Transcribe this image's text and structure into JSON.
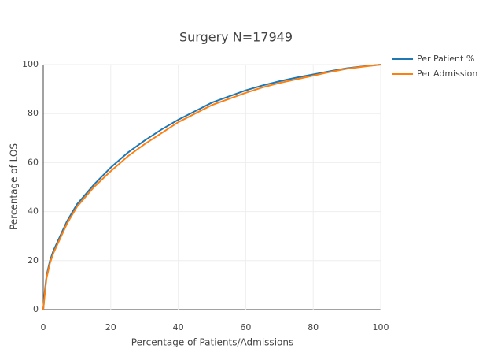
{
  "chart_data": {
    "type": "line",
    "title": "Surgery N=17949",
    "x_label": "Percentage of Patients/Admissions",
    "y_label": "Percentage of LOS",
    "x": [
      0,
      0.5,
      1,
      2,
      3,
      5,
      7,
      10,
      15,
      20,
      25,
      30,
      35,
      40,
      45,
      50,
      55,
      60,
      65,
      70,
      75,
      80,
      85,
      90,
      95,
      100
    ],
    "series": [
      {
        "name": "Per Patient %",
        "color": "#1f77b4",
        "values": [
          0,
          8,
          14,
          20,
          24,
          30,
          36,
          43,
          51,
          58,
          64,
          69,
          73.5,
          77.5,
          81,
          84.5,
          87,
          89.5,
          91.5,
          93.2,
          94.7,
          96,
          97.3,
          98.5,
          99.3,
          100
        ]
      },
      {
        "name": "Per Admission %",
        "color": "#ff7f0e",
        "values": [
          0,
          7,
          13,
          19,
          23,
          29,
          35,
          42,
          50,
          56.5,
          62.5,
          67.5,
          72,
          76.5,
          80,
          83.5,
          86,
          88.5,
          90.7,
          92.5,
          94,
          95.5,
          97,
          98.3,
          99.2,
          100
        ]
      }
    ],
    "xlim": [
      0,
      100
    ],
    "ylim": [
      0,
      100
    ],
    "xticks": [
      0,
      20,
      40,
      60,
      80,
      100
    ],
    "yticks": [
      0,
      20,
      40,
      60,
      80,
      100
    ],
    "grid": true
  }
}
